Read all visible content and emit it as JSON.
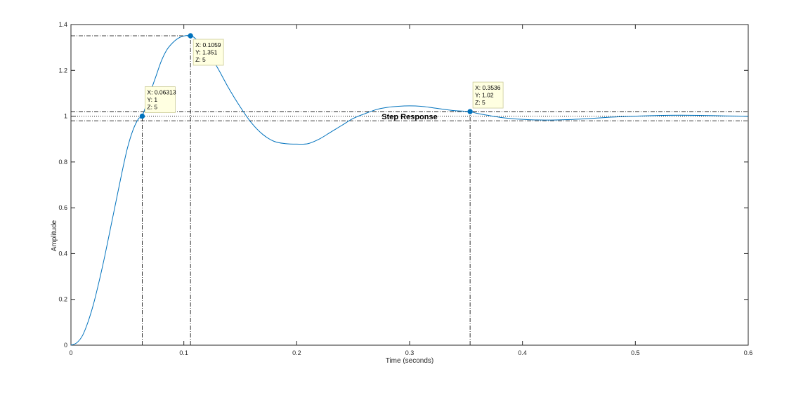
{
  "chart_data": {
    "type": "line",
    "title": "Step Response",
    "xlabel": "Time (seconds)",
    "ylabel": "Amplitude",
    "xlim": [
      0,
      0.6
    ],
    "ylim": [
      0,
      1.4
    ],
    "xticks": [
      "0",
      "0.1",
      "0.2",
      "0.3",
      "0.4",
      "0.5",
      "0.6"
    ],
    "xtick_values": [
      0,
      0.1,
      0.2,
      0.3,
      0.4,
      0.5,
      0.6
    ],
    "yticks": [
      "0",
      "0.2",
      "0.4",
      "0.6",
      "0.8",
      "1",
      "1.2",
      "1.4"
    ],
    "ytick_values": [
      0,
      0.2,
      0.4,
      0.6,
      0.8,
      1.0,
      1.2,
      1.4
    ],
    "grid": false,
    "line_color": "#0072bd",
    "series": [
      {
        "x": [
          0,
          0.005,
          0.01,
          0.015,
          0.02,
          0.025,
          0.03,
          0.035,
          0.04,
          0.045,
          0.05,
          0.055,
          0.06,
          0.06313,
          0.07,
          0.075,
          0.08,
          0.085,
          0.09,
          0.095,
          0.1,
          0.1059,
          0.11,
          0.12,
          0.13,
          0.14,
          0.15,
          0.16,
          0.17,
          0.18,
          0.19,
          0.2,
          0.21,
          0.22,
          0.23,
          0.24,
          0.25,
          0.26,
          0.27,
          0.28,
          0.29,
          0.3,
          0.31,
          0.32,
          0.33,
          0.34,
          0.3536,
          0.36,
          0.38,
          0.4,
          0.42,
          0.44,
          0.46,
          0.48,
          0.5,
          0.52,
          0.54,
          0.56,
          0.58,
          0.6
        ],
        "y": [
          0,
          0.01,
          0.04,
          0.1,
          0.18,
          0.28,
          0.39,
          0.51,
          0.63,
          0.75,
          0.86,
          0.94,
          0.99,
          1.0,
          1.1,
          1.17,
          1.24,
          1.29,
          1.32,
          1.34,
          1.35,
          1.351,
          1.34,
          1.29,
          1.21,
          1.12,
          1.04,
          0.97,
          0.92,
          0.89,
          0.88,
          0.878,
          0.88,
          0.9,
          0.93,
          0.96,
          0.99,
          1.01,
          1.028,
          1.038,
          1.043,
          1.045,
          1.043,
          1.037,
          1.03,
          1.024,
          1.02,
          1.012,
          0.995,
          0.986,
          0.983,
          0.985,
          0.99,
          0.996,
          1.0,
          1.003,
          1.004,
          1.003,
          1.001,
          1.0
        ]
      }
    ],
    "reference_lines": {
      "horizontal": [
        1.351,
        1.02,
        1.0,
        0.98
      ],
      "vertical": [
        0.06313,
        0.1059,
        0.3536
      ]
    },
    "datatips": [
      {
        "x": 0.06313,
        "y": 1,
        "lines": [
          "X: 0.06313",
          "Y: 1",
          "Z: 5"
        ]
      },
      {
        "x": 0.1059,
        "y": 1.351,
        "lines": [
          "X: 0.1059",
          "Y: 1.351",
          "Z: 5"
        ]
      },
      {
        "x": 0.3536,
        "y": 1.02,
        "lines": [
          "X: 0.3536",
          "Y: 1.02",
          "Z: 5"
        ]
      }
    ]
  }
}
